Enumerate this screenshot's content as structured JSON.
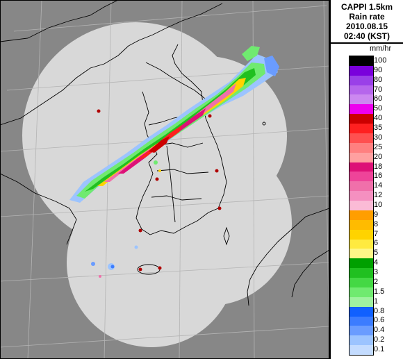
{
  "title": {
    "line1": "CAPPI 1.5km",
    "line2": "Rain rate",
    "line3": "2010.08.15",
    "line4": "02:40 (KST)"
  },
  "unit": "mm/hr",
  "legend": [
    {
      "label": "100",
      "color": "#000000"
    },
    {
      "label": "90",
      "color": "#7a00dc"
    },
    {
      "label": "80",
      "color": "#9a40e8"
    },
    {
      "label": "70",
      "color": "#b666ec"
    },
    {
      "label": "60",
      "color": "#cc88f0"
    },
    {
      "label": "50",
      "color": "#ee00ee"
    },
    {
      "label": "40",
      "color": "#cc0000"
    },
    {
      "label": "35",
      "color": "#ff2020"
    },
    {
      "label": "30",
      "color": "#ff5050"
    },
    {
      "label": "25",
      "color": "#ff8080"
    },
    {
      "label": "20",
      "color": "#ffa0a0"
    },
    {
      "label": "18",
      "color": "#dd1177"
    },
    {
      "label": "16",
      "color": "#ee4499"
    },
    {
      "label": "14",
      "color": "#f070aa"
    },
    {
      "label": "12",
      "color": "#f590c0"
    },
    {
      "label": "10",
      "color": "#fbbbd6"
    },
    {
      "label": "9",
      "color": "#ff9e00"
    },
    {
      "label": "8",
      "color": "#ffbb00"
    },
    {
      "label": "7",
      "color": "#ffd300"
    },
    {
      "label": "6",
      "color": "#ffea40"
    },
    {
      "label": "5",
      "color": "#fff788"
    },
    {
      "label": "4",
      "color": "#00a000"
    },
    {
      "label": "3",
      "color": "#20c020"
    },
    {
      "label": "2",
      "color": "#44d844"
    },
    {
      "label": "1.5",
      "color": "#70ea70"
    },
    {
      "label": "1",
      "color": "#a0f2a0"
    },
    {
      "label": "0.8",
      "color": "#1060ff"
    },
    {
      "label": "0.6",
      "color": "#3c7cff"
    },
    {
      "label": "0.4",
      "color": "#6a9cff"
    },
    {
      "label": "0.2",
      "color": "#9cc4ff"
    },
    {
      "label": "0.1",
      "color": "#c4dcff"
    }
  ],
  "colors": {
    "outside": "#878787",
    "coverage": "#d8d8d8",
    "land": "#c9c9c9",
    "border": "#000000",
    "grid": "#b4b4b4"
  },
  "sites": [
    "radar-site"
  ]
}
